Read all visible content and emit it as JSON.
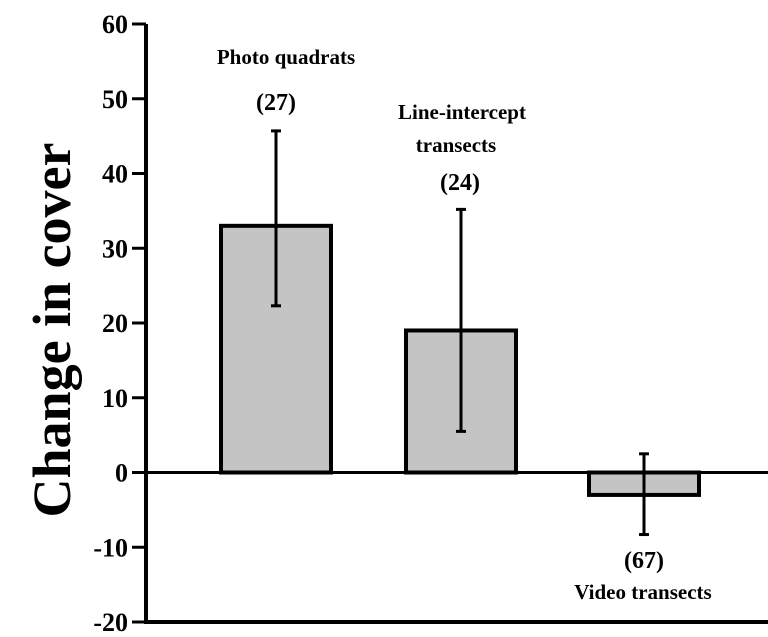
{
  "chart_data": {
    "type": "bar",
    "ylabel": "Change in cover",
    "xlabel": "",
    "title": "",
    "ylim": [
      -20,
      60
    ],
    "yticks": [
      -20,
      -10,
      0,
      10,
      20,
      30,
      40,
      50,
      60
    ],
    "ytick_labels": [
      "-20",
      "-10",
      "0",
      "10",
      "20",
      "30",
      "40",
      "50",
      "60"
    ],
    "grid": false,
    "categories": [
      {
        "name_lines": [
          "Photo quadrats"
        ],
        "n_label": "(27)",
        "value": 33,
        "error_low": 22.3,
        "error_high": 45.7
      },
      {
        "name_lines": [
          "Line-intercept",
          "transects"
        ],
        "n_label": "(24)",
        "value": 19,
        "error_low": 5.5,
        "error_high": 35.2
      },
      {
        "name_lines": [
          "Video transects"
        ],
        "n_label": "(67)",
        "value": -3,
        "error_low": -8.3,
        "error_high": 2.5
      }
    ],
    "colors": {
      "bar_fill": "#c4c4c4",
      "bar_stroke": "#000000",
      "axis": "#000000"
    }
  }
}
